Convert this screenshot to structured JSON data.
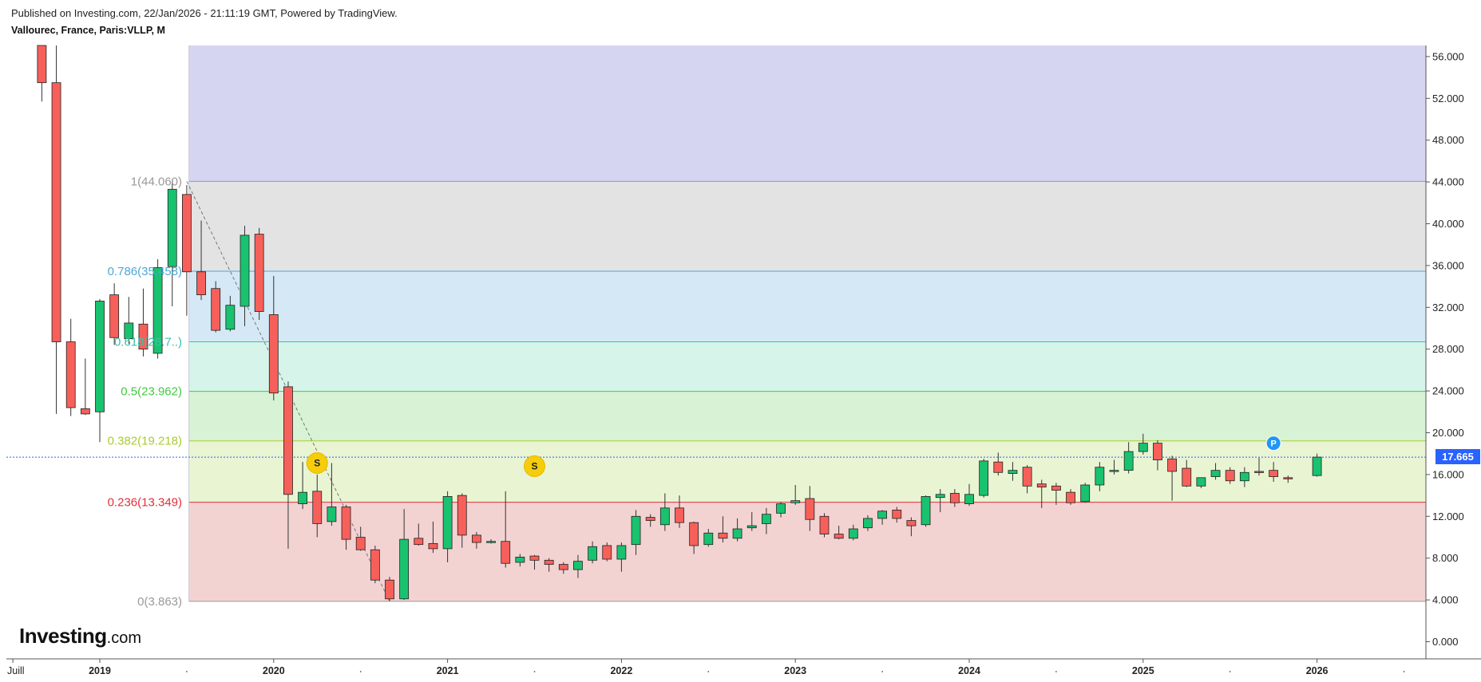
{
  "header": {
    "published": "Published on Investing.com, 22/Jan/2026 - 21:11:19 GMT, Powered by TradingView.",
    "symbol": "Vallourec, France, Paris:VLLP, M"
  },
  "watermark": {
    "brand": "Investing",
    "suffix": ".com"
  },
  "colors": {
    "up": "#19c26f",
    "down": "#f7605a",
    "wick": "#333333",
    "zone_top": "#d5d5f2",
    "zone_1_0786": "#e3e3e3",
    "zone_0786_0618": "#d4e9f5",
    "zone_0618_05": "#d6f4ea",
    "zone_05_0382": "#d7f2d4",
    "zone_0382_0236": "#e9f4d3",
    "zone_0236_0": "#f3d2d2",
    "level_1": "#999999",
    "level_0786": "#4ea7d7",
    "level_0618": "#3cc0a9",
    "level_05": "#44c844",
    "level_0382": "#a8cc2f",
    "level_0236": "#e0303a",
    "level_0": "#999999",
    "price_line": "#2962ff"
  },
  "chart_data": {
    "type": "candlestick",
    "interval": "M",
    "ylim": [
      -1.5,
      57.2
    ],
    "y_ticks": [
      "56.000",
      "52.000",
      "48.000",
      "44.000",
      "40.000",
      "36.000",
      "32.000",
      "28.000",
      "24.000",
      "20.000",
      "16.000",
      "12.000",
      "8.000",
      "4.000",
      "0.000"
    ],
    "x_ticks": [
      {
        "label": "Juill",
        "date": "2018-07"
      },
      {
        "label": "2019",
        "date": "2019-01"
      },
      {
        "label": "2020",
        "date": "2020-01"
      },
      {
        "label": "2021",
        "date": "2021-01"
      },
      {
        "label": "2022",
        "date": "2022-01"
      },
      {
        "label": "2023",
        "date": "2023-01"
      },
      {
        "label": "2024",
        "date": "2024-01"
      },
      {
        "label": "2025",
        "date": "2025-01"
      },
      {
        "label": "2026",
        "date": "2026-01"
      }
    ],
    "last_price": "17.665",
    "last_price_value": 17.665,
    "fib_levels": [
      {
        "label": "1(44.060)",
        "ratio": 1,
        "price": 44.06
      },
      {
        "label": "0.786(35.458)",
        "ratio": 0.786,
        "price": 35.458
      },
      {
        "label": "0.618(28.7..)",
        "ratio": 0.618,
        "price": 28.7
      },
      {
        "label": "0.5(23.962)",
        "ratio": 0.5,
        "price": 23.962
      },
      {
        "label": "0.382(19.218)",
        "ratio": 0.382,
        "price": 19.218
      },
      {
        "label": "0.236(13.349)",
        "ratio": 0.236,
        "price": 13.349
      },
      {
        "label": "0(3.863)",
        "ratio": 0,
        "price": 3.863
      }
    ],
    "fib_start_date": "2019-12",
    "markers": [
      {
        "label": "S",
        "date": "2020-04",
        "price": 17.1
      },
      {
        "label": "S",
        "date": "2021-07",
        "price": 16.8
      },
      {
        "label": "P",
        "date": "2025-10",
        "price": 19.0
      }
    ],
    "candles": [
      {
        "date": "2018-09",
        "o": 72.0,
        "h": 75.0,
        "l": 51.7,
        "c": 53.5
      },
      {
        "date": "2018-10",
        "o": 53.5,
        "h": 60.0,
        "l": 21.8,
        "c": 28.7
      },
      {
        "date": "2018-11",
        "o": 28.7,
        "h": 30.9,
        "l": 21.6,
        "c": 22.4
      },
      {
        "date": "2018-12",
        "o": 22.3,
        "h": 27.1,
        "l": 21.7,
        "c": 21.8
      },
      {
        "date": "2019-01",
        "o": 22.0,
        "h": 32.8,
        "l": 19.1,
        "c": 32.6
      },
      {
        "date": "2019-02",
        "o": 33.2,
        "h": 34.3,
        "l": 28.4,
        "c": 29.1
      },
      {
        "date": "2019-03",
        "o": 29.0,
        "h": 33.0,
        "l": 28.5,
        "c": 30.5
      },
      {
        "date": "2019-04",
        "o": 30.4,
        "h": 33.8,
        "l": 27.3,
        "c": 28.0
      },
      {
        "date": "2019-05",
        "o": 27.6,
        "h": 36.6,
        "l": 27.1,
        "c": 35.8
      },
      {
        "date": "2019-06",
        "o": 35.9,
        "h": 44.2,
        "l": 32.1,
        "c": 43.3
      },
      {
        "date": "2019-07",
        "o": 42.8,
        "h": 43.7,
        "l": 31.2,
        "c": 35.4
      },
      {
        "date": "2019-08",
        "o": 35.4,
        "h": 40.3,
        "l": 32.7,
        "c": 33.2
      },
      {
        "date": "2019-09",
        "o": 33.8,
        "h": 34.5,
        "l": 29.6,
        "c": 29.8
      },
      {
        "date": "2019-10",
        "o": 29.9,
        "h": 33.1,
        "l": 29.7,
        "c": 32.2
      },
      {
        "date": "2019-11",
        "o": 32.1,
        "h": 39.8,
        "l": 30.2,
        "c": 38.9
      },
      {
        "date": "2019-12",
        "o": 39.0,
        "h": 39.6,
        "l": 30.8,
        "c": 31.6
      },
      {
        "date": "2020-01",
        "o": 31.3,
        "h": 35.0,
        "l": 23.1,
        "c": 23.8
      },
      {
        "date": "2020-02",
        "o": 24.4,
        "h": 24.9,
        "l": 8.9,
        "c": 14.1
      },
      {
        "date": "2020-03",
        "o": 13.2,
        "h": 17.2,
        "l": 12.7,
        "c": 14.3
      },
      {
        "date": "2020-04",
        "o": 14.4,
        "h": 16.0,
        "l": 10.0,
        "c": 11.3
      },
      {
        "date": "2020-05",
        "o": 11.5,
        "h": 17.1,
        "l": 11.1,
        "c": 12.9
      },
      {
        "date": "2020-06",
        "o": 12.9,
        "h": 13.1,
        "l": 8.8,
        "c": 9.8
      },
      {
        "date": "2020-07",
        "o": 10.0,
        "h": 11.0,
        "l": 8.7,
        "c": 8.8
      },
      {
        "date": "2020-08",
        "o": 8.8,
        "h": 9.2,
        "l": 5.6,
        "c": 5.9
      },
      {
        "date": "2020-09",
        "o": 5.9,
        "h": 6.2,
        "l": 3.9,
        "c": 4.1
      },
      {
        "date": "2020-10",
        "o": 4.1,
        "h": 12.7,
        "l": 4.0,
        "c": 9.8
      },
      {
        "date": "2020-11",
        "o": 9.9,
        "h": 11.3,
        "l": 9.2,
        "c": 9.3
      },
      {
        "date": "2020-12",
        "o": 9.4,
        "h": 11.5,
        "l": 8.5,
        "c": 8.9
      },
      {
        "date": "2021-01",
        "o": 8.9,
        "h": 14.4,
        "l": 7.6,
        "c": 13.9
      },
      {
        "date": "2021-02",
        "o": 14.0,
        "h": 14.2,
        "l": 9.0,
        "c": 10.2
      },
      {
        "date": "2021-03",
        "o": 10.2,
        "h": 10.5,
        "l": 8.9,
        "c": 9.5
      },
      {
        "date": "2021-04",
        "o": 9.5,
        "h": 9.8,
        "l": 9.4,
        "c": 9.6
      },
      {
        "date": "2021-05",
        "o": 9.6,
        "h": 14.4,
        "l": 7.1,
        "c": 7.5
      },
      {
        "date": "2021-06",
        "o": 7.6,
        "h": 8.4,
        "l": 7.2,
        "c": 8.1
      },
      {
        "date": "2021-07",
        "o": 8.2,
        "h": 8.3,
        "l": 6.9,
        "c": 7.8
      },
      {
        "date": "2021-08",
        "o": 7.8,
        "h": 8.0,
        "l": 6.7,
        "c": 7.4
      },
      {
        "date": "2021-09",
        "o": 7.4,
        "h": 7.6,
        "l": 6.5,
        "c": 6.9
      },
      {
        "date": "2021-10",
        "o": 6.9,
        "h": 8.3,
        "l": 6.1,
        "c": 7.7
      },
      {
        "date": "2021-11",
        "o": 7.8,
        "h": 9.6,
        "l": 7.5,
        "c": 9.1
      },
      {
        "date": "2021-12",
        "o": 9.2,
        "h": 9.5,
        "l": 7.7,
        "c": 7.9
      },
      {
        "date": "2022-01",
        "o": 7.9,
        "h": 9.5,
        "l": 6.7,
        "c": 9.2
      },
      {
        "date": "2022-02",
        "o": 9.3,
        "h": 12.6,
        "l": 8.3,
        "c": 12.0
      },
      {
        "date": "2022-03",
        "o": 11.9,
        "h": 12.2,
        "l": 11.0,
        "c": 11.6
      },
      {
        "date": "2022-04",
        "o": 11.2,
        "h": 14.2,
        "l": 10.6,
        "c": 12.8
      },
      {
        "date": "2022-05",
        "o": 12.8,
        "h": 14.0,
        "l": 10.9,
        "c": 11.4
      },
      {
        "date": "2022-06",
        "o": 11.4,
        "h": 11.5,
        "l": 8.4,
        "c": 9.2
      },
      {
        "date": "2022-07",
        "o": 9.3,
        "h": 10.8,
        "l": 9.1,
        "c": 10.4
      },
      {
        "date": "2022-08",
        "o": 10.4,
        "h": 12.0,
        "l": 9.5,
        "c": 9.9
      },
      {
        "date": "2022-09",
        "o": 9.9,
        "h": 11.8,
        "l": 9.6,
        "c": 10.8
      },
      {
        "date": "2022-10",
        "o": 10.9,
        "h": 12.4,
        "l": 10.6,
        "c": 11.1
      },
      {
        "date": "2022-11",
        "o": 11.3,
        "h": 12.8,
        "l": 10.3,
        "c": 12.2
      },
      {
        "date": "2022-12",
        "o": 12.3,
        "h": 13.4,
        "l": 11.9,
        "c": 13.2
      },
      {
        "date": "2023-01",
        "o": 13.3,
        "h": 15.0,
        "l": 13.1,
        "c": 13.5
      },
      {
        "date": "2023-02",
        "o": 13.7,
        "h": 14.9,
        "l": 10.6,
        "c": 11.7
      },
      {
        "date": "2023-03",
        "o": 12.0,
        "h": 12.3,
        "l": 10.0,
        "c": 10.3
      },
      {
        "date": "2023-04",
        "o": 10.3,
        "h": 11.1,
        "l": 9.8,
        "c": 9.9
      },
      {
        "date": "2023-05",
        "o": 9.9,
        "h": 11.2,
        "l": 9.7,
        "c": 10.8
      },
      {
        "date": "2023-06",
        "o": 10.9,
        "h": 12.1,
        "l": 10.6,
        "c": 11.8
      },
      {
        "date": "2023-07",
        "o": 11.8,
        "h": 12.6,
        "l": 11.2,
        "c": 12.5
      },
      {
        "date": "2023-08",
        "o": 12.6,
        "h": 12.9,
        "l": 11.4,
        "c": 11.8
      },
      {
        "date": "2023-09",
        "o": 11.6,
        "h": 11.9,
        "l": 10.1,
        "c": 11.1
      },
      {
        "date": "2023-10",
        "o": 11.2,
        "h": 14.0,
        "l": 11.0,
        "c": 13.9
      },
      {
        "date": "2023-11",
        "o": 13.8,
        "h": 14.6,
        "l": 12.4,
        "c": 14.1
      },
      {
        "date": "2023-12",
        "o": 14.2,
        "h": 14.6,
        "l": 12.9,
        "c": 13.3
      },
      {
        "date": "2024-01",
        "o": 13.2,
        "h": 15.1,
        "l": 13.0,
        "c": 14.1
      },
      {
        "date": "2024-02",
        "o": 14.0,
        "h": 17.5,
        "l": 13.8,
        "c": 17.3
      },
      {
        "date": "2024-03",
        "o": 17.2,
        "h": 18.1,
        "l": 15.9,
        "c": 16.2
      },
      {
        "date": "2024-04",
        "o": 16.1,
        "h": 17.2,
        "l": 15.4,
        "c": 16.4
      },
      {
        "date": "2024-05",
        "o": 16.7,
        "h": 16.9,
        "l": 14.2,
        "c": 14.9
      },
      {
        "date": "2024-06",
        "o": 15.1,
        "h": 15.5,
        "l": 12.8,
        "c": 14.8
      },
      {
        "date": "2024-07",
        "o": 14.9,
        "h": 15.2,
        "l": 13.1,
        "c": 14.5
      },
      {
        "date": "2024-08",
        "o": 14.3,
        "h": 14.6,
        "l": 13.1,
        "c": 13.3
      },
      {
        "date": "2024-09",
        "o": 13.4,
        "h": 15.2,
        "l": 13.3,
        "c": 15.0
      },
      {
        "date": "2024-10",
        "o": 15.0,
        "h": 17.2,
        "l": 14.4,
        "c": 16.7
      },
      {
        "date": "2024-11",
        "o": 16.3,
        "h": 17.4,
        "l": 16.0,
        "c": 16.4
      },
      {
        "date": "2024-12",
        "o": 16.4,
        "h": 19.1,
        "l": 16.1,
        "c": 18.2
      },
      {
        "date": "2025-01",
        "o": 18.2,
        "h": 19.9,
        "l": 17.9,
        "c": 19.0
      },
      {
        "date": "2025-02",
        "o": 19.0,
        "h": 19.3,
        "l": 16.4,
        "c": 17.4
      },
      {
        "date": "2025-03",
        "o": 17.5,
        "h": 17.8,
        "l": 13.5,
        "c": 16.3
      },
      {
        "date": "2025-04",
        "o": 16.6,
        "h": 17.4,
        "l": 14.8,
        "c": 14.9
      },
      {
        "date": "2025-05",
        "o": 14.9,
        "h": 15.7,
        "l": 14.7,
        "c": 15.7
      },
      {
        "date": "2025-06",
        "o": 15.8,
        "h": 17.1,
        "l": 15.5,
        "c": 16.4
      },
      {
        "date": "2025-07",
        "o": 16.4,
        "h": 16.7,
        "l": 15.1,
        "c": 15.4
      },
      {
        "date": "2025-08",
        "o": 15.4,
        "h": 16.7,
        "l": 14.8,
        "c": 16.2
      },
      {
        "date": "2025-09",
        "o": 16.3,
        "h": 17.6,
        "l": 15.9,
        "c": 16.2
      },
      {
        "date": "2025-10",
        "o": 16.4,
        "h": 17.2,
        "l": 15.3,
        "c": 15.8
      },
      {
        "date": "2025-11",
        "o": 15.7,
        "h": 15.9,
        "l": 15.2,
        "c": 15.6
      },
      {
        "date": "2026-01",
        "o": 15.9,
        "h": 18.0,
        "l": 15.8,
        "c": 17.665
      }
    ]
  }
}
